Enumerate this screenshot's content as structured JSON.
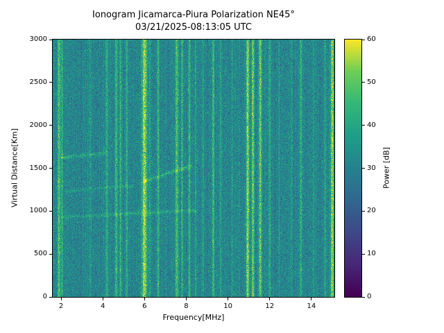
{
  "figure": {
    "title": "Ionogram Jicamarca-Piura Polarization NE45°",
    "subtitle": "03/21/2025-08:13:05 UTC"
  },
  "chart_data": {
    "type": "heatmap",
    "title": "Ionogram Jicamarca-Piura Polarization NE45°",
    "subtitle": "03/21/2025-08:13:05 UTC",
    "xlabel": "Frequency[MHz]",
    "ylabel": "Virtual Distance[Km]",
    "colorbar_label": "Power [dB]",
    "x_range": [
      1.6,
      15.1
    ],
    "y_range": [
      0,
      3000
    ],
    "power_range_db": [
      0,
      60
    ],
    "x_ticks": [
      2,
      4,
      6,
      8,
      10,
      12,
      14
    ],
    "y_ticks": [
      0,
      500,
      1000,
      1500,
      2000,
      2500,
      3000
    ],
    "colorbar_ticks": [
      0,
      10,
      20,
      30,
      40,
      50,
      60
    ],
    "grid": false,
    "background_noise_db": {
      "mean": 31,
      "std": 4.5
    },
    "interference_lines": [
      {
        "freq_mhz": 1.9,
        "width_mhz": 0.07,
        "peak_db": 20
      },
      {
        "freq_mhz": 2.05,
        "width_mhz": 0.05,
        "peak_db": 12
      },
      {
        "freq_mhz": 3.4,
        "width_mhz": 0.05,
        "peak_db": 7
      },
      {
        "freq_mhz": 4.2,
        "width_mhz": 0.05,
        "peak_db": 11
      },
      {
        "freq_mhz": 4.65,
        "width_mhz": 0.06,
        "peak_db": 15
      },
      {
        "freq_mhz": 4.85,
        "width_mhz": 0.05,
        "peak_db": 13
      },
      {
        "freq_mhz": 5.15,
        "width_mhz": 0.05,
        "peak_db": 12
      },
      {
        "freq_mhz": 6.0,
        "width_mhz": 0.11,
        "peak_db": 27
      },
      {
        "freq_mhz": 6.25,
        "width_mhz": 0.04,
        "peak_db": 9
      },
      {
        "freq_mhz": 6.65,
        "width_mhz": 0.05,
        "peak_db": 13
      },
      {
        "freq_mhz": 7.55,
        "width_mhz": 0.07,
        "peak_db": 17
      },
      {
        "freq_mhz": 7.8,
        "width_mhz": 0.05,
        "peak_db": 13
      },
      {
        "freq_mhz": 8.15,
        "width_mhz": 0.05,
        "peak_db": 13
      },
      {
        "freq_mhz": 8.45,
        "width_mhz": 0.04,
        "peak_db": 8
      },
      {
        "freq_mhz": 8.8,
        "width_mhz": 0.04,
        "peak_db": 7
      },
      {
        "freq_mhz": 9.3,
        "width_mhz": 0.06,
        "peak_db": 14
      },
      {
        "freq_mhz": 9.65,
        "width_mhz": 0.04,
        "peak_db": 8
      },
      {
        "freq_mhz": 10.2,
        "width_mhz": 0.04,
        "peak_db": 7
      },
      {
        "freq_mhz": 10.95,
        "width_mhz": 0.08,
        "peak_db": 24
      },
      {
        "freq_mhz": 11.2,
        "width_mhz": 0.06,
        "peak_db": 23
      },
      {
        "freq_mhz": 11.55,
        "width_mhz": 0.07,
        "peak_db": 23
      },
      {
        "freq_mhz": 12.0,
        "width_mhz": 0.05,
        "peak_db": 12
      },
      {
        "freq_mhz": 12.45,
        "width_mhz": 0.04,
        "peak_db": 8
      },
      {
        "freq_mhz": 13.05,
        "width_mhz": 0.04,
        "peak_db": 7
      },
      {
        "freq_mhz": 13.5,
        "width_mhz": 0.06,
        "peak_db": 14
      },
      {
        "freq_mhz": 14.1,
        "width_mhz": 0.04,
        "peak_db": 7
      },
      {
        "freq_mhz": 14.65,
        "width_mhz": 0.05,
        "peak_db": 9
      },
      {
        "freq_mhz": 15.0,
        "width_mhz": 0.08,
        "peak_db": 26
      }
    ],
    "echo_traces": [
      {
        "f_start": 2.0,
        "f_end": 4.2,
        "d_start_km": 1620,
        "d_end_km": 1680,
        "amp_db": 10,
        "thickness_km": 22
      },
      {
        "f_start": 2.0,
        "f_end": 8.5,
        "d_start_km": 930,
        "d_end_km": 1010,
        "amp_db": 9,
        "thickness_km": 20
      },
      {
        "f_start": 6.0,
        "f_end": 8.3,
        "d_start_km": 1350,
        "d_end_km": 1530,
        "amp_db": 13,
        "thickness_km": 22
      },
      {
        "f_start": 2.2,
        "f_end": 5.5,
        "d_start_km": 1230,
        "d_end_km": 1300,
        "amp_db": 7,
        "thickness_km": 18
      }
    ],
    "colormap": {
      "name": "viridis",
      "stops": [
        [
          0.0,
          "#440154"
        ],
        [
          0.125,
          "#482878"
        ],
        [
          0.25,
          "#3e4989"
        ],
        [
          0.375,
          "#31688e"
        ],
        [
          0.5,
          "#26828e"
        ],
        [
          0.625,
          "#1f9e89"
        ],
        [
          0.75,
          "#35b779"
        ],
        [
          0.875,
          "#6ece58"
        ],
        [
          1.0,
          "#fde725"
        ]
      ]
    },
    "seed": 42
  }
}
